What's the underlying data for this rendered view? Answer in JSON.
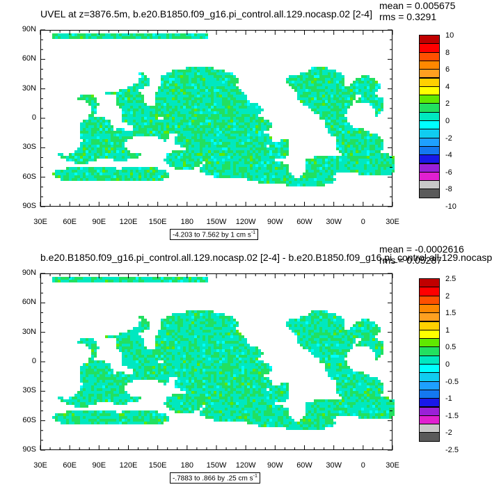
{
  "colors": [
    "#5a5a5a",
    "#c8c8c8",
    "#e020d0",
    "#9a20d8",
    "#1818e8",
    "#1478f0",
    "#1ea0ff",
    "#10ccf0",
    "#00ffff",
    "#00e8c0",
    "#22e060",
    "#60e800",
    "#ffff00",
    "#ffd000",
    "#ffa020",
    "#ff8800",
    "#ff5000",
    "#ff0000",
    "#c00000"
  ],
  "chart_data": [
    {
      "type": "heatmap",
      "title": "UVEL at z=3876.5m, b.e20.B1850.f09_g16.pi_control.all.129.nocasp.02 [2-4]",
      "mean_text": "mean = 0.005675",
      "rms_text": "rms = 0.3291",
      "range_text": "-4.203 to 7.562 by 1 cm s",
      "range_unit_sup": "-1",
      "lat_ticks": [
        "90N",
        "60N",
        "30N",
        "0",
        "30S",
        "60S",
        "90S"
      ],
      "lon_ticks": [
        "30E",
        "60E",
        "90E",
        "120E",
        "150E",
        "180",
        "150W",
        "120W",
        "90W",
        "60W",
        "30W",
        "0",
        "30E"
      ],
      "colorbar_labels": [
        "10",
        "8",
        "6",
        "4",
        "2",
        "0",
        "-2",
        "-4",
        "-6",
        "-8",
        "-10"
      ],
      "lat_range": [
        -90,
        90
      ],
      "lon_range": [
        30,
        390
      ]
    },
    {
      "type": "heatmap",
      "title": "b.e20.B1850.f09_g16.pi_control.all.129.nocasp.02 [2-4] - b.e20.B1850.f09_g16.pi_control.all.129.nocasp",
      "mean_text": "mean = -0.0002616",
      "rms_text": "rms = 0.05287",
      "range_text": "-.7883 to .866 by .25 cm s",
      "range_unit_sup": "-1",
      "lat_ticks": [
        "90N",
        "60N",
        "30N",
        "0",
        "30S",
        "60S",
        "90S"
      ],
      "lon_ticks": [
        "30E",
        "60E",
        "90E",
        "120E",
        "150E",
        "180",
        "150W",
        "120W",
        "90W",
        "60W",
        "30W",
        "0",
        "30E"
      ],
      "colorbar_labels": [
        "2.5",
        "2",
        "1.5",
        "1",
        "0.5",
        "0",
        "-0.5",
        "-1",
        "-1.5",
        "-2",
        "-2.5"
      ],
      "lat_range": [
        -90,
        90
      ],
      "lon_range": [
        30,
        390
      ]
    }
  ]
}
